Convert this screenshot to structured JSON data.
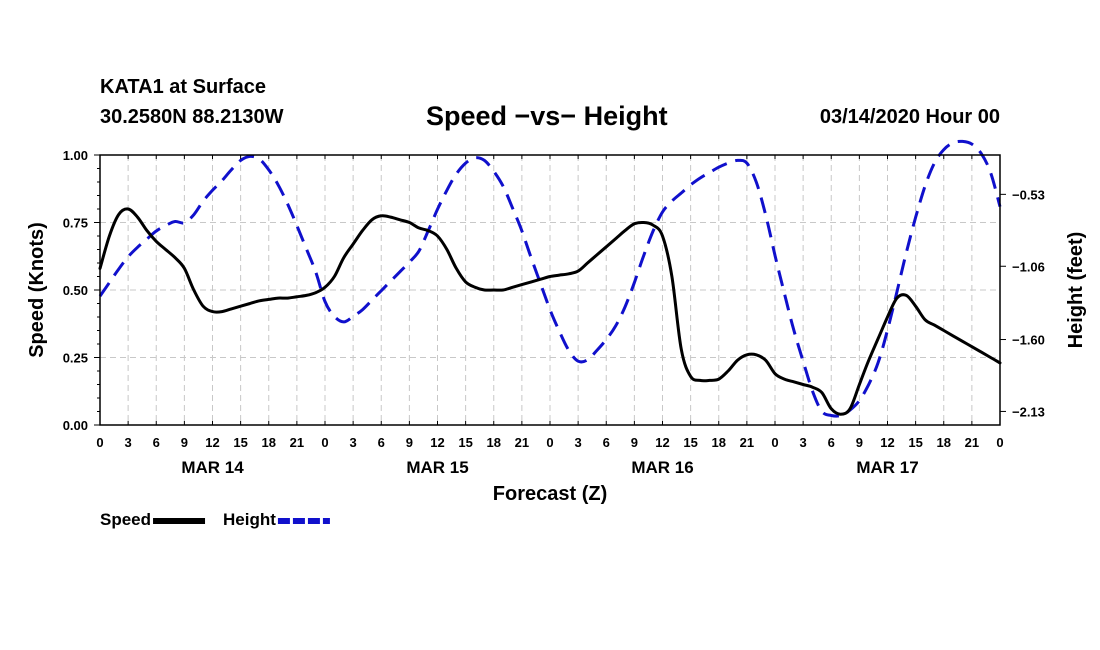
{
  "header": {
    "station": "KATA1 at Surface",
    "coords": "30.2580N 88.2130W",
    "title": "Speed −vs− Height",
    "datetime": "03/14/2020 Hour 00"
  },
  "chart_data": {
    "type": "line",
    "title": "Speed −vs− Height",
    "xlabel": "Forecast (Z)",
    "ylabel": "Speed (Knots)",
    "ylabel_right": "Height (feet)",
    "xlim": [
      0,
      96
    ],
    "ylim": [
      0,
      1.0
    ],
    "ylim_right": [
      -2.23,
      -0.24
    ],
    "x_tick_labels": [
      "0",
      "3",
      "6",
      "9",
      "12",
      "15",
      "18",
      "21",
      "0",
      "3",
      "6",
      "9",
      "12",
      "15",
      "18",
      "21",
      "0",
      "3",
      "6",
      "9",
      "12",
      "15",
      "18",
      "21",
      "0",
      "3",
      "6",
      "9",
      "12",
      "15",
      "18",
      "21",
      "0"
    ],
    "day_labels": [
      {
        "label": "MAR 14",
        "hour": 12
      },
      {
        "label": "MAR 15",
        "hour": 36
      },
      {
        "label": "MAR 16",
        "hour": 60
      },
      {
        "label": "MAR 17",
        "hour": 84
      }
    ],
    "y_ticks": [
      "0.00",
      "0.25",
      "0.50",
      "0.75",
      "1.00"
    ],
    "y_right_ticks": [
      "−0.53",
      "−1.06",
      "−1.60",
      "−2.13"
    ],
    "y_right_tick_values": [
      -0.53,
      -1.06,
      -1.6,
      -2.13
    ],
    "grid": true,
    "legend_position": "bottom-left",
    "series": [
      {
        "name": "Speed",
        "axis": "left",
        "color": "#000000",
        "dash": "solid",
        "points": [
          [
            0,
            0.58
          ],
          [
            1,
            0.7
          ],
          [
            2,
            0.78
          ],
          [
            3,
            0.8
          ],
          [
            4,
            0.77
          ],
          [
            5,
            0.72
          ],
          [
            6,
            0.68
          ],
          [
            7,
            0.65
          ],
          [
            8,
            0.62
          ],
          [
            9,
            0.58
          ],
          [
            10,
            0.5
          ],
          [
            11,
            0.44
          ],
          [
            12,
            0.42
          ],
          [
            13,
            0.42
          ],
          [
            14,
            0.43
          ],
          [
            15,
            0.44
          ],
          [
            16,
            0.45
          ],
          [
            17,
            0.46
          ],
          [
            18,
            0.465
          ],
          [
            19,
            0.47
          ],
          [
            20,
            0.47
          ],
          [
            21,
            0.475
          ],
          [
            22,
            0.48
          ],
          [
            23,
            0.49
          ],
          [
            24,
            0.51
          ],
          [
            25,
            0.55
          ],
          [
            26,
            0.62
          ],
          [
            27,
            0.67
          ],
          [
            28,
            0.72
          ],
          [
            29,
            0.76
          ],
          [
            30,
            0.775
          ],
          [
            31,
            0.77
          ],
          [
            32,
            0.76
          ],
          [
            33,
            0.75
          ],
          [
            34,
            0.73
          ],
          [
            35,
            0.72
          ],
          [
            36,
            0.7
          ],
          [
            37,
            0.65
          ],
          [
            38,
            0.58
          ],
          [
            39,
            0.53
          ],
          [
            40,
            0.51
          ],
          [
            41,
            0.5
          ],
          [
            42,
            0.5
          ],
          [
            43,
            0.5
          ],
          [
            44,
            0.51
          ],
          [
            45,
            0.52
          ],
          [
            46,
            0.53
          ],
          [
            47,
            0.54
          ],
          [
            48,
            0.55
          ],
          [
            49,
            0.555
          ],
          [
            50,
            0.56
          ],
          [
            51,
            0.57
          ],
          [
            52,
            0.6
          ],
          [
            53,
            0.63
          ],
          [
            54,
            0.66
          ],
          [
            55,
            0.69
          ],
          [
            56,
            0.72
          ],
          [
            57,
            0.745
          ],
          [
            58,
            0.75
          ],
          [
            59,
            0.74
          ],
          [
            60,
            0.7
          ],
          [
            61,
            0.55
          ],
          [
            62,
            0.28
          ],
          [
            63,
            0.18
          ],
          [
            64,
            0.165
          ],
          [
            65,
            0.165
          ],
          [
            66,
            0.17
          ],
          [
            67,
            0.2
          ],
          [
            68,
            0.24
          ],
          [
            69,
            0.26
          ],
          [
            70,
            0.26
          ],
          [
            71,
            0.24
          ],
          [
            72,
            0.19
          ],
          [
            73,
            0.17
          ],
          [
            74,
            0.16
          ],
          [
            75,
            0.15
          ],
          [
            76,
            0.14
          ],
          [
            77,
            0.12
          ],
          [
            78,
            0.06
          ],
          [
            79,
            0.04
          ],
          [
            80,
            0.06
          ],
          [
            81,
            0.15
          ],
          [
            82,
            0.24
          ],
          [
            83,
            0.32
          ],
          [
            84,
            0.4
          ],
          [
            85,
            0.47
          ],
          [
            86,
            0.48
          ],
          [
            87,
            0.44
          ],
          [
            88,
            0.39
          ],
          [
            89,
            0.37
          ],
          [
            90,
            0.35
          ],
          [
            91,
            0.33
          ],
          [
            92,
            0.31
          ],
          [
            93,
            0.29
          ],
          [
            94,
            0.27
          ],
          [
            95,
            0.25
          ],
          [
            96,
            0.23
          ]
        ]
      },
      {
        "name": "Height",
        "axis": "right",
        "color": "#1010cc",
        "dash": "dashed",
        "points": [
          [
            0,
            -1.28
          ],
          [
            1,
            -1.18
          ],
          [
            2,
            -1.08
          ],
          [
            3,
            -0.99
          ],
          [
            4,
            -0.92
          ],
          [
            5,
            -0.86
          ],
          [
            6,
            -0.8
          ],
          [
            7,
            -0.76
          ],
          [
            8,
            -0.73
          ],
          [
            9,
            -0.74
          ],
          [
            10,
            -0.68
          ],
          [
            11,
            -0.58
          ],
          [
            12,
            -0.5
          ],
          [
            13,
            -0.43
          ],
          [
            14,
            -0.35
          ],
          [
            15,
            -0.28
          ],
          [
            16,
            -0.25
          ],
          [
            17,
            -0.27
          ],
          [
            18,
            -0.35
          ],
          [
            19,
            -0.46
          ],
          [
            20,
            -0.6
          ],
          [
            21,
            -0.76
          ],
          [
            22,
            -0.93
          ],
          [
            23,
            -1.1
          ],
          [
            24,
            -1.32
          ],
          [
            25,
            -1.43
          ],
          [
            26,
            -1.47
          ],
          [
            27,
            -1.43
          ],
          [
            28,
            -1.38
          ],
          [
            29,
            -1.31
          ],
          [
            30,
            -1.24
          ],
          [
            31,
            -1.17
          ],
          [
            32,
            -1.1
          ],
          [
            33,
            -1.03
          ],
          [
            34,
            -0.95
          ],
          [
            35,
            -0.8
          ],
          [
            36,
            -0.64
          ],
          [
            37,
            -0.5
          ],
          [
            38,
            -0.38
          ],
          [
            39,
            -0.3
          ],
          [
            40,
            -0.26
          ],
          [
            41,
            -0.28
          ],
          [
            42,
            -0.36
          ],
          [
            43,
            -0.47
          ],
          [
            44,
            -0.63
          ],
          [
            45,
            -0.8
          ],
          [
            46,
            -1.0
          ],
          [
            47,
            -1.19
          ],
          [
            48,
            -1.38
          ],
          [
            49,
            -1.54
          ],
          [
            50,
            -1.68
          ],
          [
            51,
            -1.76
          ],
          [
            52,
            -1.75
          ],
          [
            53,
            -1.68
          ],
          [
            54,
            -1.6
          ],
          [
            55,
            -1.5
          ],
          [
            56,
            -1.36
          ],
          [
            57,
            -1.18
          ],
          [
            58,
            -0.98
          ],
          [
            59,
            -0.8
          ],
          [
            60,
            -0.66
          ],
          [
            61,
            -0.58
          ],
          [
            62,
            -0.52
          ],
          [
            63,
            -0.46
          ],
          [
            64,
            -0.41
          ],
          [
            65,
            -0.37
          ],
          [
            66,
            -0.33
          ],
          [
            67,
            -0.3
          ],
          [
            68,
            -0.28
          ],
          [
            69,
            -0.3
          ],
          [
            70,
            -0.44
          ],
          [
            71,
            -0.68
          ],
          [
            72,
            -0.98
          ],
          [
            73,
            -1.26
          ],
          [
            74,
            -1.53
          ],
          [
            75,
            -1.76
          ],
          [
            76,
            -1.98
          ],
          [
            77,
            -2.13
          ],
          [
            78,
            -2.16
          ],
          [
            79,
            -2.16
          ],
          [
            80,
            -2.12
          ],
          [
            81,
            -2.05
          ],
          [
            82,
            -1.93
          ],
          [
            83,
            -1.77
          ],
          [
            84,
            -1.53
          ],
          [
            85,
            -1.25
          ],
          [
            86,
            -0.96
          ],
          [
            87,
            -0.7
          ],
          [
            88,
            -0.47
          ],
          [
            89,
            -0.3
          ],
          [
            90,
            -0.2
          ],
          [
            91,
            -0.15
          ],
          [
            92,
            -0.14
          ],
          [
            93,
            -0.16
          ],
          [
            94,
            -0.23
          ],
          [
            95,
            -0.37
          ],
          [
            96,
            -0.62
          ]
        ]
      }
    ]
  }
}
